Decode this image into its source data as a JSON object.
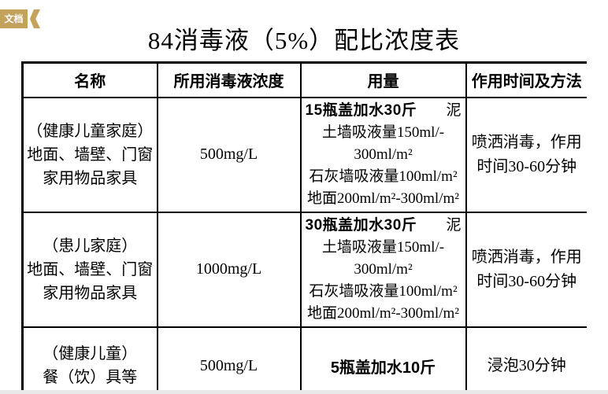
{
  "tag": {
    "label": "文档",
    "color": "#c3a35c"
  },
  "title": "84消毒液（5%）配比浓度表",
  "colors": {
    "accent": "#c3a35c",
    "border": "#000000",
    "bottom_strip": "#e9e9e9"
  },
  "table": {
    "headers": [
      "名称",
      "所用消毒液浓度",
      "用量",
      "作用时间及方法"
    ],
    "rows": [
      {
        "name_lines": [
          "（健康儿童家庭）",
          "地面、墙壁、门窗",
          "家用物品家具"
        ],
        "concentration": "500mg/L",
        "dosage": {
          "bold": "15瓶盖加水30斤",
          "right": "泥",
          "lines": [
            "土墙吸液量150ml/-",
            "300ml/m²",
            "石灰墙吸液量100ml/m²",
            "地面200ml/m²-300ml/m²"
          ]
        },
        "method_lines": [
          "喷洒消毒，作用",
          "时间30-60分钟"
        ]
      },
      {
        "name_lines": [
          "（患儿家庭）",
          "地面、墙壁、门窗",
          "家用物品家具"
        ],
        "concentration": "1000mg/L",
        "dosage": {
          "bold": "30瓶盖加水30斤",
          "right": "泥",
          "lines": [
            "土墙吸液量150ml/-",
            "300ml/m²",
            "石灰墙吸液量100ml/m²",
            "地面200ml/m²-300ml/m²"
          ]
        },
        "method_lines": [
          "喷洒消毒，作用",
          "时间30-60分钟"
        ]
      },
      {
        "name_lines": [
          "（健康儿童）",
          "餐（饮）具等"
        ],
        "concentration": "500mg/L",
        "dosage": {
          "bold": "5瓶盖加水10斤"
        },
        "method_lines": [
          "浸泡30分钟"
        ]
      }
    ]
  }
}
